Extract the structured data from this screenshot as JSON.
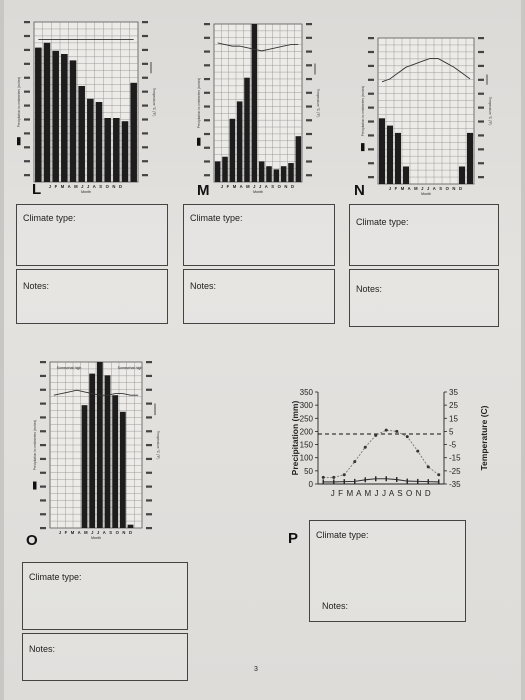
{
  "sections": {
    "L": {
      "letter": "L",
      "climate_label": "Climate type:",
      "notes_label": "Notes:",
      "months_axis": "J F M A M J J A S O N D",
      "x_title": "Month",
      "left_title": "Precipitation in centimeters (inches)",
      "right_title": "Temperature °C (°F)",
      "chart_data": {
        "type": "bar",
        "categories": [
          "J",
          "F",
          "M",
          "A",
          "M",
          "J",
          "J",
          "A",
          "S",
          "O",
          "N",
          "D"
        ],
        "precip_fraction": [
          0.84,
          0.87,
          0.82,
          0.8,
          0.76,
          0.6,
          0.52,
          0.5,
          0.4,
          0.4,
          0.38,
          0.62
        ],
        "temp_fraction": [
          0.89,
          0.89,
          0.89,
          0.89,
          0.89,
          0.89,
          0.89,
          0.89,
          0.89,
          0.89,
          0.89,
          0.89
        ]
      }
    },
    "M": {
      "letter": "M",
      "climate_label": "Climate type:",
      "notes_label": "Notes:",
      "months_axis": "J F M A M J J A S O N D",
      "x_title": "Month",
      "left_title": "Precipitation in centimeters (inches)",
      "right_title": "Temperature °C (°F)",
      "chart_data": {
        "type": "bar",
        "categories": [
          "J",
          "F",
          "M",
          "A",
          "M",
          "J",
          "J",
          "A",
          "S",
          "O",
          "N",
          "D"
        ],
        "precip_fraction": [
          0.13,
          0.16,
          0.4,
          0.51,
          0.66,
          1.0,
          0.13,
          0.1,
          0.08,
          0.1,
          0.12,
          0.29
        ],
        "temp_fraction": [
          0.88,
          0.87,
          0.86,
          0.86,
          0.85,
          0.84,
          0.83,
          0.84,
          0.85,
          0.86,
          0.87,
          0.87
        ]
      }
    },
    "N": {
      "letter": "N",
      "climate_label": "Climate type:",
      "notes_label": "Notes:",
      "months_axis": "J F M A M J J A S O N D",
      "x_title": "Month",
      "left_title": "Precipitation in centimeters (inches)",
      "right_title": "Temperature °C (°F)",
      "chart_data": {
        "type": "bar",
        "categories": [
          "J",
          "F",
          "M",
          "A",
          "M",
          "J",
          "J",
          "A",
          "S",
          "O",
          "N",
          "D"
        ],
        "precip_fraction": [
          0.45,
          0.4,
          0.35,
          0.12,
          0.0,
          0.0,
          0.0,
          0.0,
          0.0,
          0.0,
          0.12,
          0.35
        ],
        "temp_fraction": [
          0.7,
          0.72,
          0.76,
          0.8,
          0.82,
          0.84,
          0.86,
          0.86,
          0.83,
          0.8,
          0.76,
          0.72
        ]
      }
    },
    "O": {
      "letter": "O",
      "climate_label": "Climate type:",
      "notes_label": "Notes:",
      "months_axis": "J F M A M J J A S O N D",
      "x_title": "Month",
      "left_title": "Precipitation in centimeters (inches)",
      "right_title": "Temperature °C (°F)",
      "annot_left": "Somewhat high",
      "annot_right": "Somewhat high",
      "chart_data": {
        "type": "bar",
        "categories": [
          "J",
          "F",
          "M",
          "A",
          "M",
          "J",
          "J",
          "A",
          "S",
          "O",
          "N",
          "D"
        ],
        "precip_fraction": [
          0.0,
          0.0,
          0.0,
          0.0,
          0.74,
          0.93,
          1.0,
          0.92,
          0.8,
          0.7,
          0.02,
          0.0
        ],
        "temp_fraction": [
          0.8,
          0.81,
          0.82,
          0.83,
          0.82,
          0.81,
          0.8,
          0.8,
          0.81,
          0.81,
          0.8,
          0.8
        ]
      }
    },
    "P": {
      "letter": "P",
      "climate_label": "Climate type:",
      "notes_label": "Notes:",
      "chart_data": {
        "type": "line",
        "x": [
          "J",
          "F",
          "M",
          "A",
          "M",
          "J",
          "J",
          "A",
          "S",
          "O",
          "N",
          "D"
        ],
        "xtick_text": "J F M A M J J A S O N D",
        "ylabel": "Precipitation (mm)",
        "y2label": "Temperature (C)",
        "yticks": [
          "350",
          "300",
          "250",
          "200",
          "150",
          "100",
          "50",
          "0"
        ],
        "y2ticks": [
          "35",
          "25",
          "15",
          "5",
          "-5",
          "-15",
          "-25",
          "-35"
        ],
        "ylim": [
          0,
          350
        ],
        "y2lim": [
          -35,
          35
        ],
        "series": [
          {
            "values": [
              -30,
              -30,
              -28,
              -18,
              -7,
              2,
              6,
              5,
              1,
              -10,
              -22,
              -28
            ]
          },
          {
            "values": [
              8,
              8,
              9,
              10,
              16,
              20,
              20,
              17,
              11,
              10,
              9,
              8
            ]
          }
        ],
        "reference_line_y2": 3
      }
    }
  },
  "page_number": "3"
}
